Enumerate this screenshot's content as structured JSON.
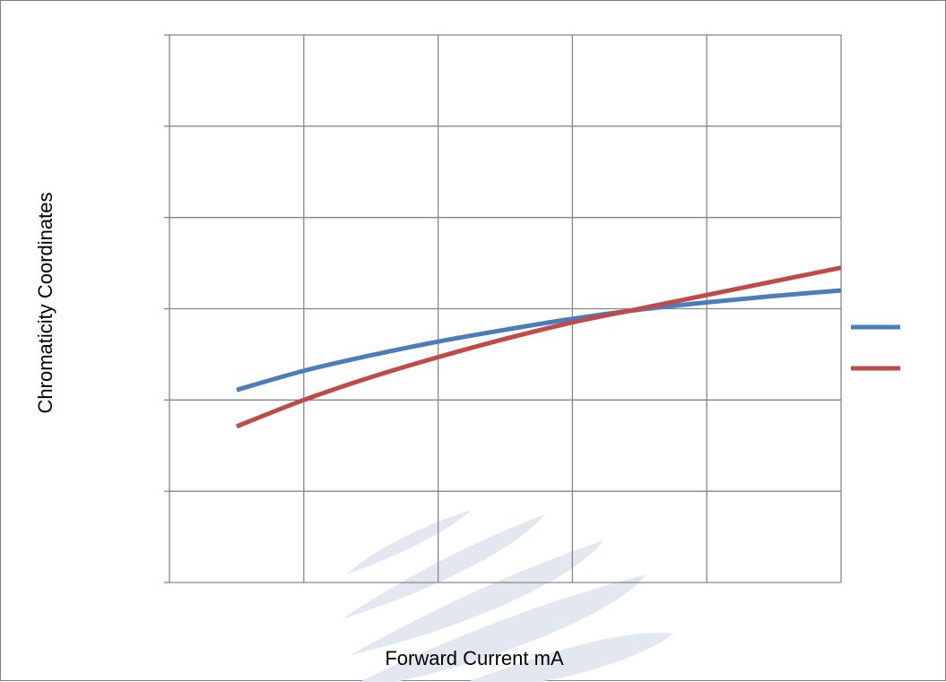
{
  "chart_data": {
    "type": "line",
    "title": "",
    "xlabel": "Forward Current    mA",
    "ylabel": "Chromaticity Coordinates",
    "xlim": [
      0,
      5
    ],
    "ylim": [
      0,
      6
    ],
    "grid": true,
    "legend_position": "right",
    "series": [
      {
        "color": "#4a7ebb",
        "x": [
          0.5,
          1.0,
          1.5,
          2.0,
          2.5,
          3.0,
          3.5,
          4.0,
          4.5,
          5.0
        ],
        "y": [
          2.11,
          2.32,
          2.49,
          2.64,
          2.77,
          2.89,
          2.99,
          3.07,
          3.14,
          3.2
        ]
      },
      {
        "color": "#be4b48",
        "x": [
          0.5,
          1.0,
          1.5,
          2.0,
          2.5,
          3.0,
          3.5,
          4.0,
          4.5,
          5.0
        ],
        "y": [
          1.71,
          2.0,
          2.25,
          2.47,
          2.67,
          2.85,
          3.0,
          3.15,
          3.3,
          3.45
        ]
      }
    ]
  },
  "colors": {
    "grid": "#868686",
    "frame": "#7f7f7f",
    "watermark": "#e3e7f0"
  }
}
